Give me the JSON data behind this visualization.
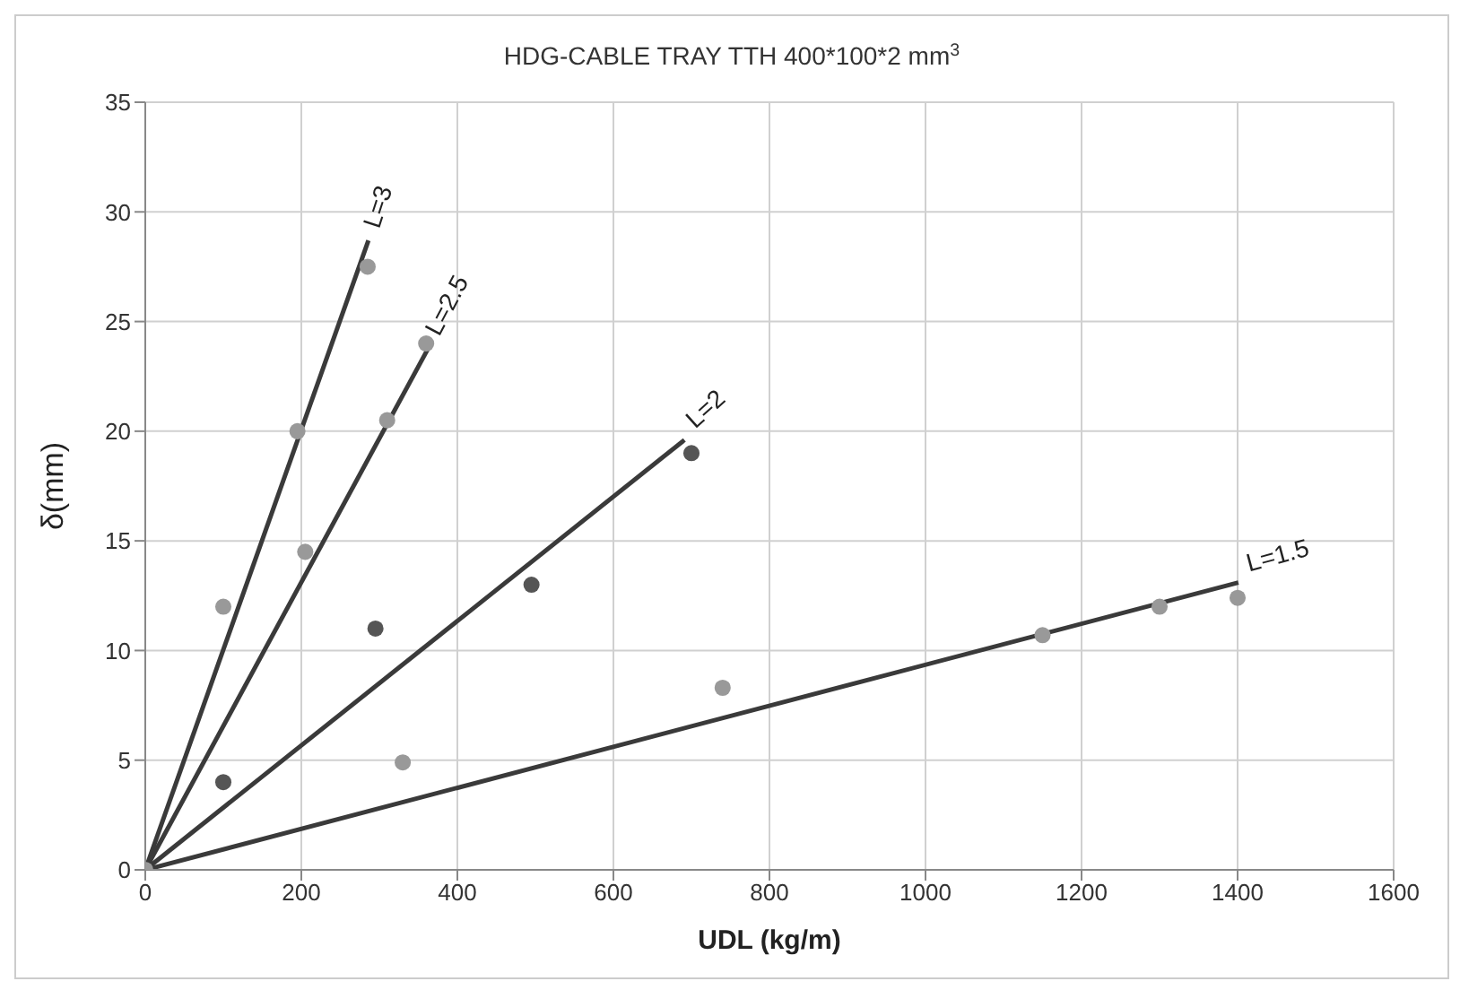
{
  "chart_data": {
    "type": "scatter",
    "title": "HDG-CABLE TRAY TTH 400*100*2 mm$^{3}$",
    "xlabel": "UDL (kg/m)",
    "ylabel": "δ(mm)",
    "xlim": [
      0,
      1600
    ],
    "xticks": [
      0,
      200,
      400,
      600,
      800,
      1000,
      1200,
      1400,
      1600
    ],
    "ylim": [
      0,
      35
    ],
    "yticks": [
      0,
      5,
      10,
      15,
      20,
      25,
      30,
      35
    ],
    "grid": true,
    "series": [
      {
        "type": "line",
        "name": "L=3",
        "marker": "none",
        "color": "#3a3a3a",
        "x": [
          0,
          286
        ],
        "values": [
          0,
          28.7
        ]
      },
      {
        "type": "line",
        "name": "L=2.5",
        "marker": "none",
        "color": "#3a3a3a",
        "x": [
          0,
          363
        ],
        "values": [
          0,
          23.8
        ]
      },
      {
        "type": "line",
        "name": "L=2",
        "marker": "none",
        "color": "#3a3a3a",
        "x": [
          0,
          691
        ],
        "values": [
          0,
          19.6
        ]
      },
      {
        "type": "line",
        "name": "L=1.5",
        "marker": "none",
        "color": "#3a3a3a",
        "x": [
          0,
          1401
        ],
        "values": [
          0,
          13.1
        ]
      },
      {
        "marker": "circle",
        "color": "#999999",
        "x": [
          0,
          100,
          195,
          205,
          285,
          310,
          360,
          330,
          740,
          1150,
          1300,
          1400
        ],
        "values": [
          0,
          12,
          20,
          14.5,
          27.5,
          20.5,
          24,
          4.9,
          8.3,
          10.7,
          12,
          12.4
        ]
      },
      {
        "marker": "circle",
        "color": "#555555",
        "x": [
          100,
          295,
          495,
          700
        ],
        "values": [
          4,
          11,
          13,
          19
        ]
      }
    ]
  }
}
